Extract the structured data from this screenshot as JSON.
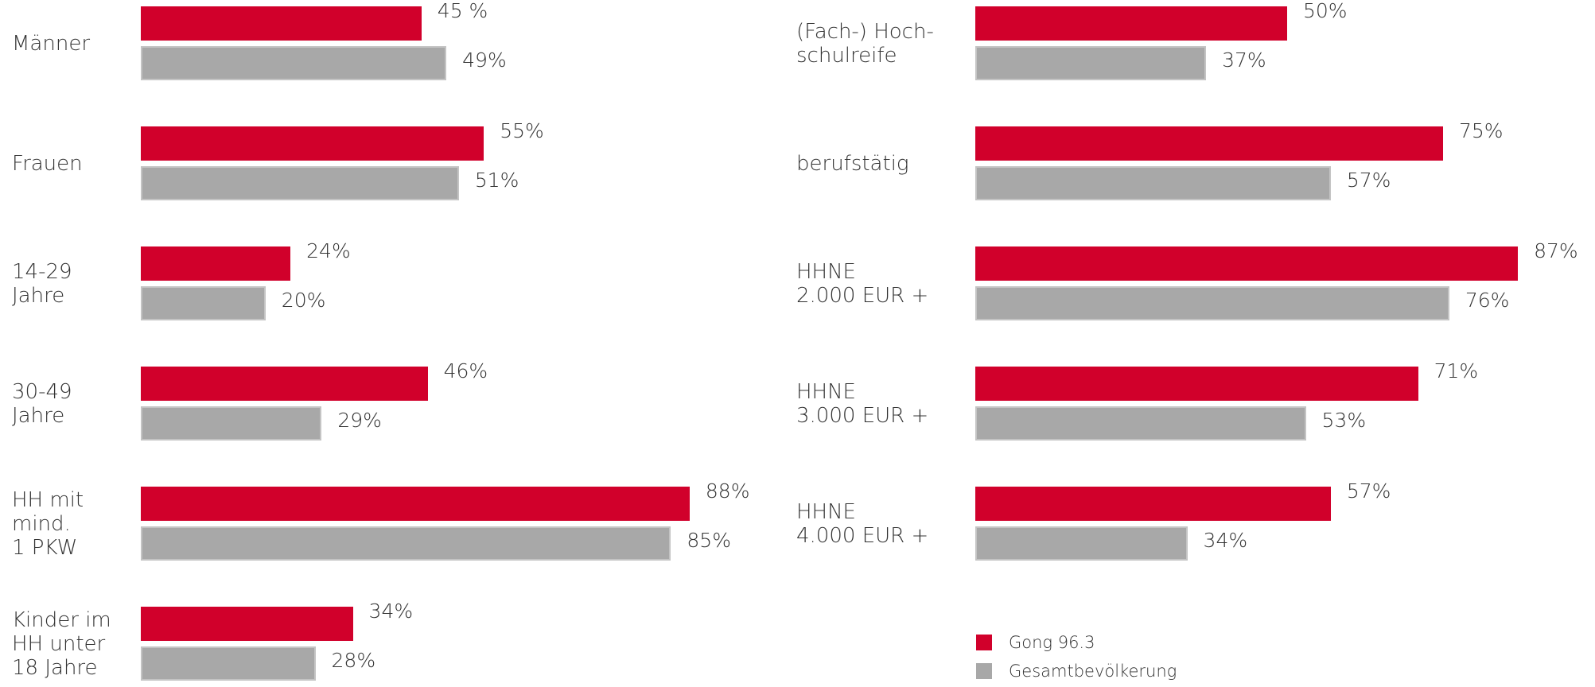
{
  "chart_data": [
    {
      "type": "barh",
      "categories": [
        "Männer",
        "Frauen",
        "14-29\nJahre",
        "30-49\nJahre",
        "HH mit\nmind.\n1 PKW",
        "Kinder im\nHH unter\n18 Jahre"
      ],
      "series": [
        {
          "name": "Gong 96.3",
          "color": "#d1002b",
          "values": [
            45,
            55,
            24,
            46,
            88,
            34
          ],
          "value_labels": [
            "45 %",
            "55%",
            "24%",
            "46%",
            "88%",
            "34%"
          ]
        },
        {
          "name": "Gesamtbevölkerung",
          "color": "#a8a8a8",
          "values": [
            49,
            51,
            20,
            29,
            85,
            28
          ],
          "value_labels": [
            "49%",
            "51%",
            "20%",
            "29%",
            "85%",
            "28%"
          ]
        }
      ]
    },
    {
      "type": "barh",
      "categories": [
        "(Fach-) Hoch-\nschulreife",
        "berufstätig",
        "HHNE\n2.000 EUR +",
        "HHNE\n3.000 EUR +",
        "HHNE\n4.000 EUR +"
      ],
      "series": [
        {
          "name": "Gong 96.3",
          "color": "#d1002b",
          "values": [
            50,
            75,
            87,
            71,
            57
          ],
          "value_labels": [
            "50%",
            "75%",
            "87%",
            "71%",
            "57%"
          ]
        },
        {
          "name": "Gesamtbevölkerung",
          "color": "#a8a8a8",
          "values": [
            37,
            57,
            76,
            53,
            34
          ],
          "value_labels": [
            "37%",
            "57%",
            "76%",
            "53%",
            "34%"
          ]
        }
      ],
      "legend": true
    }
  ]
}
